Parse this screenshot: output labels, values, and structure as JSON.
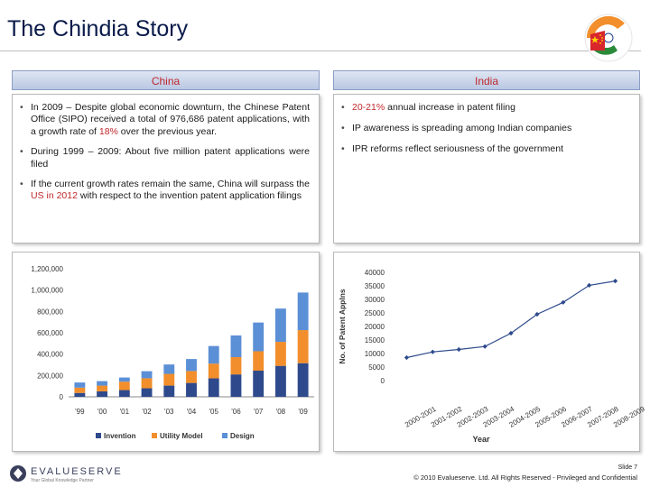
{
  "slide": {
    "title": "The Chindia Story",
    "slide_number": "Slide 7",
    "copyright": "© 2010 Evalueserve. Ltd. All Rights Reserved - Privileged and Confidential",
    "logo_name": "EVALUESERVE",
    "logo_tagline": "Your Global Knowledge Partner"
  },
  "china": {
    "header": "China",
    "bullets": [
      {
        "pre": "In 2009 – Despite global economic downturn, the Chinese Patent Office (SIPO) received a total of 976,686 patent applications, with a growth rate of ",
        "hl": "18%",
        "post": " over the previous year."
      },
      {
        "pre": "During 1999 – 2009: About five million patent applications were filed",
        "hl": "",
        "post": ""
      },
      {
        "pre": "If the current growth rates remain the same, China will surpass the ",
        "hl": "US in 2012",
        "post": " with respect to the invention patent application filings"
      }
    ]
  },
  "india": {
    "header": "India",
    "bullets": [
      {
        "pre": "",
        "hl": "20-21%",
        "post": " annual increase in patent filing"
      },
      {
        "pre": "IP awareness is spreading among Indian companies",
        "hl": "",
        "post": ""
      },
      {
        "pre": "IPR reforms reflect seriousness of the government",
        "hl": "",
        "post": ""
      }
    ]
  },
  "chart_data": [
    {
      "type": "bar",
      "stacked": true,
      "categories": [
        "'99",
        "'00",
        "'01",
        "'02",
        "'03",
        "'04",
        "'05",
        "'06",
        "'07",
        "'08",
        "'09"
      ],
      "series": [
        {
          "name": "Invention",
          "color": "#2e4a8c",
          "values": [
            36000,
            51000,
            63000,
            80000,
            105000,
            130000,
            173000,
            210000,
            245000,
            290000,
            315000
          ]
        },
        {
          "name": "Utility Model",
          "color": "#f28e2b",
          "values": [
            50000,
            54000,
            79000,
            94000,
            110000,
            112000,
            138000,
            162000,
            182000,
            225000,
            310000
          ]
        },
        {
          "name": "Design",
          "color": "#5b8fd6",
          "values": [
            48000,
            42000,
            39000,
            66000,
            88000,
            112000,
            165000,
            203000,
            269000,
            312000,
            352000
          ]
        }
      ],
      "ylim": [
        0,
        1200000
      ],
      "yticks": [
        "0",
        "200,000",
        "400,000",
        "600,000",
        "800,000",
        "1,000,000",
        "1,200,000"
      ],
      "legend": [
        "Invention",
        "Utility Model",
        "Design"
      ]
    },
    {
      "type": "line",
      "x": [
        "2000-2001",
        "2001-2002",
        "2002-2003",
        "2003-2004",
        "2004-2005",
        "2005-2006",
        "2006-2007",
        "2007-2008",
        "2008-2009"
      ],
      "series": [
        {
          "name": "No. of Patent Applns",
          "color": "#2e4a8c",
          "values": [
            8500,
            10600,
            11500,
            12600,
            17500,
            24500,
            28900,
            35200,
            36800
          ]
        }
      ],
      "ylim": [
        0,
        40000
      ],
      "yticks": [
        "0",
        "5000",
        "10000",
        "15000",
        "20000",
        "25000",
        "30000",
        "35000",
        "40000"
      ],
      "ylabel": "No. of Patent Applns",
      "xlabel": "Year"
    }
  ]
}
